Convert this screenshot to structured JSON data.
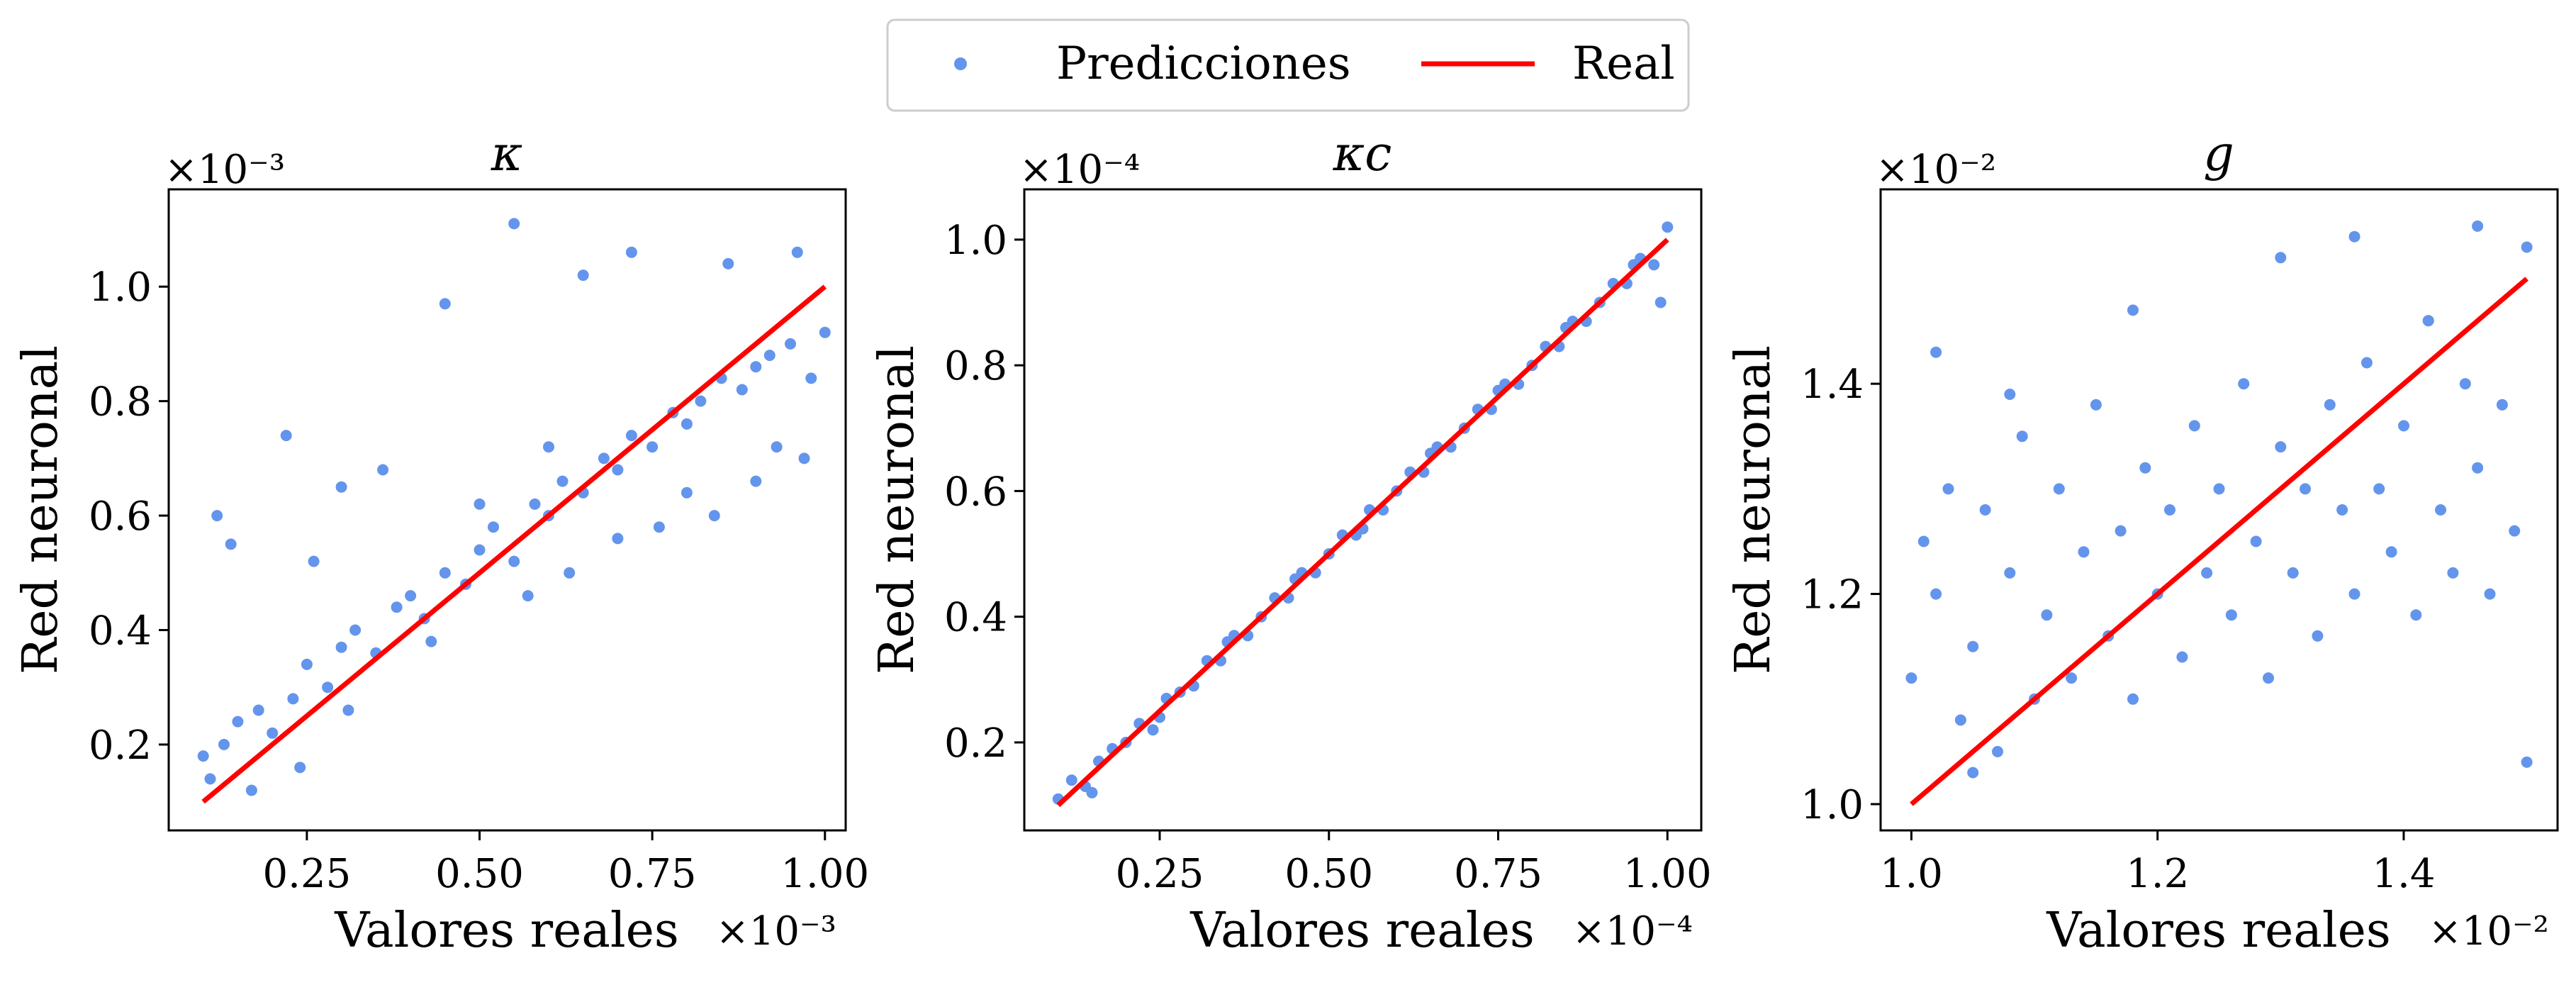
{
  "legend": {
    "predictions_label": "Predicciones",
    "real_label": "Real",
    "placement": "top-center",
    "colors": {
      "predictions": "#6495ED",
      "real": "#FF0000"
    }
  },
  "chart_data": [
    {
      "type": "scatter",
      "title": "κ",
      "xlabel": "Valores reales",
      "ylabel": "Red neuronal",
      "x_multiplier": "×10⁻³",
      "y_multiplier": "×10⁻³",
      "xlim": [
        0.05,
        1.03
      ],
      "ylim": [
        0.05,
        1.17
      ],
      "xticks": [
        0.25,
        0.5,
        0.75,
        1.0
      ],
      "xtick_labels": [
        "0.25",
        "0.50",
        "0.75",
        "1.00"
      ],
      "yticks": [
        0.2,
        0.4,
        0.6,
        0.8,
        1.0
      ],
      "ytick_labels": [
        "0.2",
        "0.4",
        "0.6",
        "0.8",
        "1.0"
      ],
      "grid": false,
      "series": [
        {
          "name": "Predicciones",
          "color": "#6495ED",
          "x": [
            0.1,
            0.11,
            0.13,
            0.15,
            0.18,
            0.2,
            0.23,
            0.25,
            0.28,
            0.3,
            0.32,
            0.35,
            0.38,
            0.4,
            0.42,
            0.45,
            0.48,
            0.5,
            0.52,
            0.55,
            0.58,
            0.6,
            0.62,
            0.65,
            0.68,
            0.7,
            0.72,
            0.75,
            0.78,
            0.8,
            0.82,
            0.85,
            0.88,
            0.9,
            0.92,
            0.95,
            0.98,
            1.0,
            0.14,
            0.22,
            0.3,
            0.45,
            0.55,
            0.65,
            0.72,
            0.86,
            0.96,
            0.12,
            0.26,
            0.36,
            0.5,
            0.6,
            0.7,
            0.8,
            0.9,
            0.97,
            0.17,
            0.24,
            0.31,
            0.43,
            0.57,
            0.63,
            0.76,
            0.84,
            0.93
          ],
          "y": [
            0.18,
            0.14,
            0.2,
            0.24,
            0.26,
            0.22,
            0.28,
            0.34,
            0.3,
            0.37,
            0.4,
            0.36,
            0.44,
            0.46,
            0.42,
            0.5,
            0.48,
            0.54,
            0.58,
            0.52,
            0.62,
            0.6,
            0.66,
            0.64,
            0.7,
            0.68,
            0.74,
            0.72,
            0.78,
            0.76,
            0.8,
            0.84,
            0.82,
            0.86,
            0.88,
            0.9,
            0.84,
            0.92,
            0.55,
            0.74,
            0.65,
            0.97,
            1.11,
            1.02,
            1.06,
            1.04,
            1.06,
            0.6,
            0.52,
            0.68,
            0.62,
            0.72,
            0.56,
            0.64,
            0.66,
            0.7,
            0.12,
            0.16,
            0.26,
            0.38,
            0.46,
            0.5,
            0.58,
            0.6,
            0.72
          ]
        },
        {
          "name": "Real",
          "color": "#FF0000",
          "x": [
            0.1,
            1.0
          ],
          "y": [
            0.1,
            1.0
          ]
        }
      ]
    },
    {
      "type": "scatter",
      "title": "κc",
      "xlabel": "Valores reales",
      "ylabel": "Red neuronal",
      "x_multiplier": "×10⁻⁴",
      "y_multiplier": "×10⁻⁴",
      "xlim": [
        0.05,
        1.05
      ],
      "ylim": [
        0.06,
        1.08
      ],
      "xticks": [
        0.25,
        0.5,
        0.75,
        1.0
      ],
      "xtick_labels": [
        "0.25",
        "0.50",
        "0.75",
        "1.00"
      ],
      "yticks": [
        0.2,
        0.4,
        0.6,
        0.8,
        1.0
      ],
      "ytick_labels": [
        "0.2",
        "0.4",
        "0.6",
        "0.8",
        "1.0"
      ],
      "grid": false,
      "series": [
        {
          "name": "Predicciones",
          "color": "#6495ED",
          "x": [
            0.1,
            0.12,
            0.14,
            0.16,
            0.18,
            0.2,
            0.22,
            0.24,
            0.26,
            0.28,
            0.3,
            0.32,
            0.34,
            0.36,
            0.38,
            0.4,
            0.42,
            0.44,
            0.46,
            0.48,
            0.5,
            0.52,
            0.54,
            0.56,
            0.58,
            0.6,
            0.62,
            0.64,
            0.66,
            0.68,
            0.7,
            0.72,
            0.74,
            0.76,
            0.78,
            0.8,
            0.82,
            0.84,
            0.86,
            0.88,
            0.9,
            0.92,
            0.94,
            0.96,
            0.98,
            1.0,
            0.15,
            0.25,
            0.35,
            0.45,
            0.55,
            0.65,
            0.75,
            0.85,
            0.95,
            0.99
          ],
          "y": [
            0.11,
            0.14,
            0.13,
            0.17,
            0.19,
            0.2,
            0.23,
            0.22,
            0.27,
            0.28,
            0.29,
            0.33,
            0.33,
            0.37,
            0.37,
            0.4,
            0.43,
            0.43,
            0.47,
            0.47,
            0.5,
            0.53,
            0.53,
            0.57,
            0.57,
            0.6,
            0.63,
            0.63,
            0.67,
            0.67,
            0.7,
            0.73,
            0.73,
            0.77,
            0.77,
            0.8,
            0.83,
            0.83,
            0.87,
            0.87,
            0.9,
            0.93,
            0.93,
            0.97,
            0.96,
            1.02,
            0.12,
            0.24,
            0.36,
            0.46,
            0.54,
            0.66,
            0.76,
            0.86,
            0.96,
            0.9
          ]
        },
        {
          "name": "Real",
          "color": "#FF0000",
          "x": [
            0.1,
            1.0
          ],
          "y": [
            0.1,
            1.0
          ]
        }
      ]
    },
    {
      "type": "scatter",
      "title": "g",
      "xlabel": "Valores reales",
      "ylabel": "Red neuronal",
      "x_multiplier": "×10⁻²",
      "y_multiplier": "×10⁻²",
      "xlim": [
        0.975,
        1.525
      ],
      "ylim": [
        0.975,
        1.585
      ],
      "xticks": [
        1.0,
        1.2,
        1.4
      ],
      "xtick_labels": [
        "1.0",
        "1.2",
        "1.4"
      ],
      "yticks": [
        1.0,
        1.2,
        1.4
      ],
      "ytick_labels": [
        "1.0",
        "1.2",
        "1.4"
      ],
      "grid": false,
      "series": [
        {
          "name": "Predicciones",
          "color": "#6495ED",
          "x": [
            1.0,
            1.01,
            1.02,
            1.03,
            1.04,
            1.05,
            1.06,
            1.07,
            1.08,
            1.09,
            1.1,
            1.11,
            1.12,
            1.13,
            1.14,
            1.15,
            1.16,
            1.17,
            1.18,
            1.19,
            1.2,
            1.21,
            1.22,
            1.23,
            1.24,
            1.25,
            1.26,
            1.27,
            1.28,
            1.29,
            1.3,
            1.31,
            1.32,
            1.33,
            1.34,
            1.35,
            1.36,
            1.37,
            1.38,
            1.39,
            1.4,
            1.41,
            1.42,
            1.43,
            1.44,
            1.45,
            1.46,
            1.47,
            1.48,
            1.49,
            1.5,
            1.02,
            1.08,
            1.18,
            1.3,
            1.36,
            1.42,
            1.46,
            1.5,
            1.05
          ],
          "y": [
            1.12,
            1.25,
            1.2,
            1.3,
            1.08,
            1.15,
            1.28,
            1.05,
            1.22,
            1.35,
            1.1,
            1.18,
            1.3,
            1.12,
            1.24,
            1.38,
            1.16,
            1.26,
            1.1,
            1.32,
            1.2,
            1.28,
            1.14,
            1.36,
            1.22,
            1.3,
            1.18,
            1.4,
            1.25,
            1.12,
            1.34,
            1.22,
            1.3,
            1.16,
            1.38,
            1.28,
            1.2,
            1.42,
            1.3,
            1.24,
            1.36,
            1.18,
            1.46,
            1.28,
            1.22,
            1.4,
            1.32,
            1.2,
            1.38,
            1.26,
            1.04,
            1.43,
            1.39,
            1.47,
            1.52,
            1.54,
            1.46,
            1.55,
            1.53,
            1.03
          ]
        },
        {
          "name": "Real",
          "color": "#FF0000",
          "x": [
            1.0,
            1.5
          ],
          "y": [
            1.0,
            1.5
          ]
        }
      ]
    }
  ]
}
